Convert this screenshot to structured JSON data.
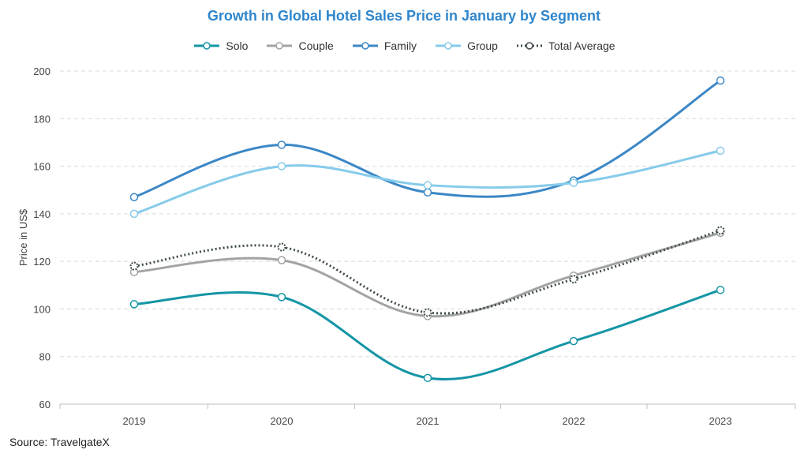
{
  "chart_data": {
    "type": "line",
    "title": "Growth in Global Hotel Sales Price in January by Segment",
    "xlabel": "",
    "ylabel": "Price in US$",
    "categories": [
      "2019",
      "2020",
      "2021",
      "2022",
      "2023"
    ],
    "ylim": [
      60,
      200
    ],
    "yticks": [
      60,
      80,
      100,
      120,
      140,
      160,
      180,
      200
    ],
    "grid": true,
    "legend_position": "top-center",
    "smooth": true,
    "series": [
      {
        "name": "Solo",
        "values": [
          102,
          105,
          71,
          86.5,
          108
        ],
        "color": "#1495a5",
        "dashed": false
      },
      {
        "name": "Couple",
        "values": [
          115.5,
          120.5,
          97,
          114,
          132
        ],
        "color": "#a3a3a3",
        "dashed": false
      },
      {
        "name": "Family",
        "values": [
          147,
          169,
          149,
          154,
          196
        ],
        "color": "#3c87c6",
        "dashed": false
      },
      {
        "name": "Group",
        "values": [
          140,
          160,
          152,
          153,
          166.5
        ],
        "color": "#86cbea",
        "dashed": false
      },
      {
        "name": "Total Average",
        "values": [
          118,
          126,
          98.5,
          112.5,
          133
        ],
        "color": "#3f4a4d",
        "dashed": true
      }
    ]
  },
  "source": "Source: TravelgateX"
}
